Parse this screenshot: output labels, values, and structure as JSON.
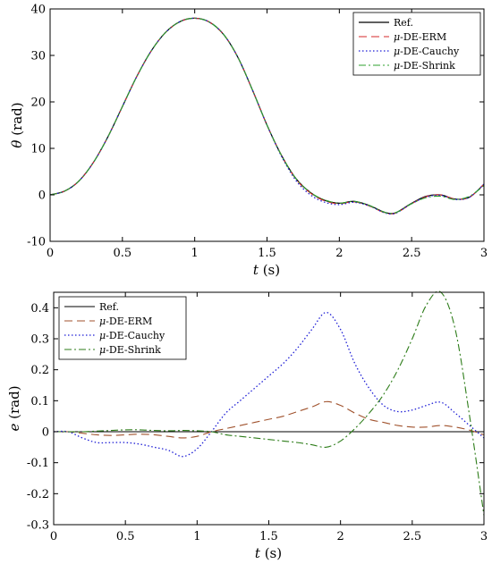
{
  "chart_data": [
    {
      "type": "line",
      "title": "",
      "xlabel_var": "t",
      "xlabel_unit": " (s)",
      "ylabel_var": "θ",
      "ylabel_unit": " (rad)",
      "xlim": [
        0,
        3
      ],
      "ylim": [
        -10,
        40
      ],
      "xticks": [
        0,
        0.5,
        1,
        1.5,
        2,
        2.5,
        3
      ],
      "xtick_labels": [
        "0",
        "0.5",
        "1",
        "1.5",
        "2",
        "2.5",
        "3"
      ],
      "yticks": [
        -10,
        0,
        10,
        20,
        30,
        40
      ],
      "ytick_labels": [
        "-10",
        "0",
        "10",
        "20",
        "30",
        "40"
      ],
      "grid": false,
      "legend_position": "top-right",
      "x": [
        0,
        0.1,
        0.2,
        0.3,
        0.4,
        0.5,
        0.6,
        0.7,
        0.8,
        0.9,
        1.0,
        1.1,
        1.2,
        1.3,
        1.4,
        1.5,
        1.6,
        1.7,
        1.8,
        1.9,
        2.0,
        2.1,
        2.2,
        2.3,
        2.35,
        2.4,
        2.5,
        2.6,
        2.7,
        2.8,
        2.9,
        3.0
      ],
      "series": [
        {
          "name_prefix": "",
          "name": "Ref.",
          "color": "#000000",
          "dash": "",
          "width": 1.2,
          "values": [
            0,
            0.8,
            3,
            7,
            12.5,
            19,
            25.5,
            31,
            35,
            37.3,
            38,
            37.2,
            34.5,
            29.5,
            22.5,
            15,
            8.5,
            3.5,
            0.5,
            -1.2,
            -1.8,
            -1.4,
            -2.2,
            -3.6,
            -4,
            -3.7,
            -1.8,
            -0.3,
            0,
            -0.9,
            -0.5,
            2.3
          ]
        },
        {
          "name_prefix": "μ",
          "name": "-DE-ERM",
          "color": "#d62728",
          "dash": "9,5",
          "width": 1.1,
          "values": [
            0,
            0.8,
            3,
            7,
            12.5,
            19,
            25.5,
            31,
            35,
            37.3,
            38,
            37.2,
            34.5,
            29.5,
            22.5,
            15,
            8.5,
            3.4,
            0.4,
            -1.3,
            -1.9,
            -1.5,
            -2.3,
            -3.7,
            -4.1,
            -3.8,
            -1.9,
            -0.4,
            0,
            -0.9,
            -0.5,
            2.3
          ]
        },
        {
          "name_prefix": "μ",
          "name": "-DE-Cauchy",
          "color": "#1f1fd6",
          "dash": "1.5,2.5",
          "width": 1.3,
          "values": [
            0,
            0.8,
            3,
            7,
            12.5,
            19,
            25.5,
            31,
            35,
            37.3,
            38,
            37.2,
            34.5,
            29.5,
            22.5,
            15,
            8.3,
            3.1,
            0,
            -1.6,
            -2.1,
            -1.6,
            -2.3,
            -3.7,
            -4.1,
            -3.8,
            -1.9,
            -0.5,
            -0.1,
            -1,
            -0.5,
            2.3
          ]
        },
        {
          "name_prefix": "μ",
          "name": "-DE-Shrink",
          "color": "#2ca02c",
          "dash": "8,3,2,3",
          "width": 1.1,
          "values": [
            0,
            0.8,
            3,
            7,
            12.5,
            19,
            25.5,
            31,
            35,
            37.3,
            38,
            37.2,
            34.5,
            29.5,
            22.5,
            15,
            8.5,
            3.5,
            0.5,
            -1.1,
            -1.8,
            -1.4,
            -2.2,
            -3.6,
            -4,
            -3.7,
            -1.9,
            -0.6,
            -0.3,
            -1,
            -0.3,
            2
          ]
        }
      ]
    },
    {
      "type": "line",
      "title": "",
      "xlabel_var": "t",
      "xlabel_unit": " (s)",
      "ylabel_var": "e",
      "ylabel_unit": " (rad)",
      "xlim": [
        0,
        3
      ],
      "ylim": [
        -0.3,
        0.45
      ],
      "xticks": [
        0,
        0.5,
        1,
        1.5,
        2,
        2.5,
        3
      ],
      "xtick_labels": [
        "0",
        "0.5",
        "1",
        "1.5",
        "2",
        "2.5",
        "3"
      ],
      "yticks": [
        -0.3,
        -0.2,
        -0.1,
        0,
        0.1,
        0.2,
        0.3,
        0.4
      ],
      "ytick_labels": [
        "-0.3",
        "-0.2",
        "-0.1",
        "0",
        "0.1",
        "0.2",
        "0.3",
        "0.4"
      ],
      "grid": false,
      "legend_position": "top-left",
      "x": [
        0,
        0.1,
        0.2,
        0.3,
        0.4,
        0.5,
        0.6,
        0.7,
        0.8,
        0.9,
        1.0,
        1.1,
        1.2,
        1.3,
        1.4,
        1.5,
        1.6,
        1.7,
        1.8,
        1.9,
        2.0,
        2.1,
        2.2,
        2.3,
        2.4,
        2.5,
        2.6,
        2.7,
        2.8,
        2.9,
        3.0
      ],
      "series": [
        {
          "name_prefix": "",
          "name": "Ref.",
          "color": "#000000",
          "dash": "",
          "width": 1.1,
          "values": [
            0,
            0,
            0,
            0,
            0,
            0,
            0,
            0,
            0,
            0,
            0,
            0,
            0,
            0,
            0,
            0,
            0,
            0,
            0,
            0,
            0,
            0,
            0,
            0,
            0,
            0,
            0,
            0,
            0,
            0,
            0
          ]
        },
        {
          "name_prefix": "μ",
          "name": "-DE-ERM",
          "color": "#a0522d",
          "dash": "9,5",
          "width": 1.1,
          "values": [
            0,
            0,
            -0.005,
            -0.01,
            -0.012,
            -0.01,
            -0.008,
            -0.01,
            -0.015,
            -0.02,
            -0.015,
            0,
            0.01,
            0.02,
            0.03,
            0.04,
            0.05,
            0.065,
            0.08,
            0.097,
            0.085,
            0.06,
            0.04,
            0.03,
            0.02,
            0.015,
            0.015,
            0.02,
            0.015,
            0.005,
            -0.01
          ]
        },
        {
          "name_prefix": "μ",
          "name": "-DE-Cauchy",
          "color": "#1f1fd6",
          "dash": "1.5,2.5",
          "width": 1.3,
          "values": [
            0,
            0,
            -0.02,
            -0.035,
            -0.035,
            -0.035,
            -0.04,
            -0.05,
            -0.06,
            -0.08,
            -0.055,
            0,
            0.06,
            0.1,
            0.14,
            0.18,
            0.22,
            0.27,
            0.33,
            0.385,
            0.33,
            0.22,
            0.14,
            0.085,
            0.065,
            0.07,
            0.085,
            0.095,
            0.06,
            0.02,
            -0.02
          ]
        },
        {
          "name_prefix": "μ",
          "name": "-DE-Shrink",
          "color": "#2e7d1a",
          "dash": "8,3,2,3",
          "width": 1.1,
          "values": [
            0,
            0,
            0,
            0.002,
            0.004,
            0.006,
            0.006,
            0.004,
            0.003,
            0.004,
            0.003,
            0,
            -0.01,
            -0.015,
            -0.02,
            -0.025,
            -0.03,
            -0.035,
            -0.042,
            -0.05,
            -0.03,
            0.01,
            0.06,
            0.12,
            0.2,
            0.3,
            0.41,
            0.45,
            0.33,
            0.05,
            -0.27
          ]
        }
      ]
    }
  ]
}
